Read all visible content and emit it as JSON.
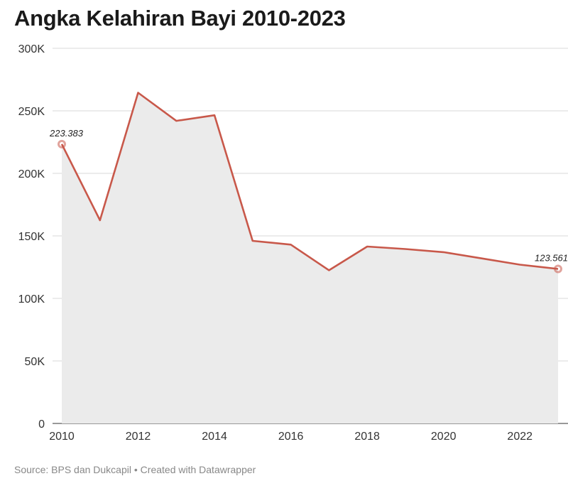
{
  "chart_data": {
    "type": "area",
    "title": "Angka Kelahiran Bayi 2010-2023",
    "x": [
      2010,
      2011,
      2012,
      2013,
      2014,
      2015,
      2016,
      2017,
      2018,
      2019,
      2020,
      2021,
      2022,
      2023
    ],
    "values": [
      223383,
      162500,
      264500,
      242000,
      246500,
      146000,
      143000,
      122500,
      141500,
      139500,
      137000,
      132000,
      127000,
      123561
    ],
    "ylim": [
      0,
      300000
    ],
    "yticks": [
      0,
      50000,
      100000,
      150000,
      200000,
      250000,
      300000
    ],
    "ytick_labels": [
      "0",
      "50K",
      "100K",
      "150K",
      "200K",
      "250K",
      "300K"
    ],
    "xticks": [
      2010,
      2012,
      2014,
      2016,
      2018,
      2020,
      2022
    ],
    "xtick_labels": [
      "2010",
      "2012",
      "2014",
      "2016",
      "2018",
      "2020",
      "2022"
    ],
    "annotations": [
      {
        "x": 2010,
        "y": 223383,
        "text": "223.383"
      },
      {
        "x": 2023,
        "y": 123561,
        "text": "123.561"
      }
    ],
    "line_color": "#c8584a",
    "area_color": "#ebebeb",
    "grid": true
  },
  "footer": {
    "source": "Source: BPS dan Dukcapil",
    "separator": "•",
    "credit": "Created with Datawrapper"
  }
}
